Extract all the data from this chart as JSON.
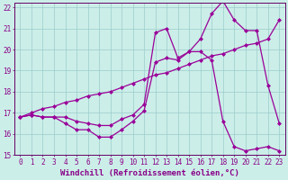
{
  "xlabel": "Windchill (Refroidissement éolien,°C)",
  "background_color": "#cceee8",
  "line_color": "#990099",
  "grid_color": "#99cccc",
  "axis_color": "#660066",
  "tick_color": "#880088",
  "xlim": [
    -0.5,
    23.5
  ],
  "ylim": [
    15,
    22.2
  ],
  "xticks": [
    0,
    1,
    2,
    3,
    4,
    5,
    6,
    7,
    8,
    9,
    10,
    11,
    12,
    13,
    14,
    15,
    16,
    17,
    18,
    19,
    20,
    21,
    22,
    23
  ],
  "yticks": [
    15,
    16,
    17,
    18,
    19,
    20,
    21,
    22
  ],
  "series1_y": [
    16.8,
    16.9,
    16.8,
    16.8,
    16.5,
    16.2,
    16.2,
    15.85,
    15.85,
    16.2,
    16.6,
    17.1,
    19.4,
    19.6,
    19.5,
    19.9,
    19.9,
    19.5,
    16.6,
    15.4,
    15.2,
    15.3,
    15.4,
    15.2
  ],
  "series2_y": [
    16.8,
    16.9,
    16.8,
    16.8,
    16.8,
    16.6,
    16.5,
    16.4,
    16.4,
    16.7,
    16.9,
    17.4,
    20.8,
    21.0,
    19.6,
    19.9,
    20.5,
    21.7,
    22.3,
    21.4,
    20.9,
    20.9,
    18.3,
    16.5
  ],
  "series3_y": [
    16.8,
    17.0,
    17.2,
    17.3,
    17.5,
    17.6,
    17.8,
    17.9,
    18.0,
    18.2,
    18.4,
    18.6,
    18.8,
    18.9,
    19.1,
    19.3,
    19.5,
    19.7,
    19.8,
    20.0,
    20.2,
    20.3,
    20.5,
    21.4
  ],
  "marker": "D",
  "marker_size": 2,
  "linewidth": 0.9,
  "xlabel_fontsize": 6.5,
  "tick_fontsize": 5.5
}
